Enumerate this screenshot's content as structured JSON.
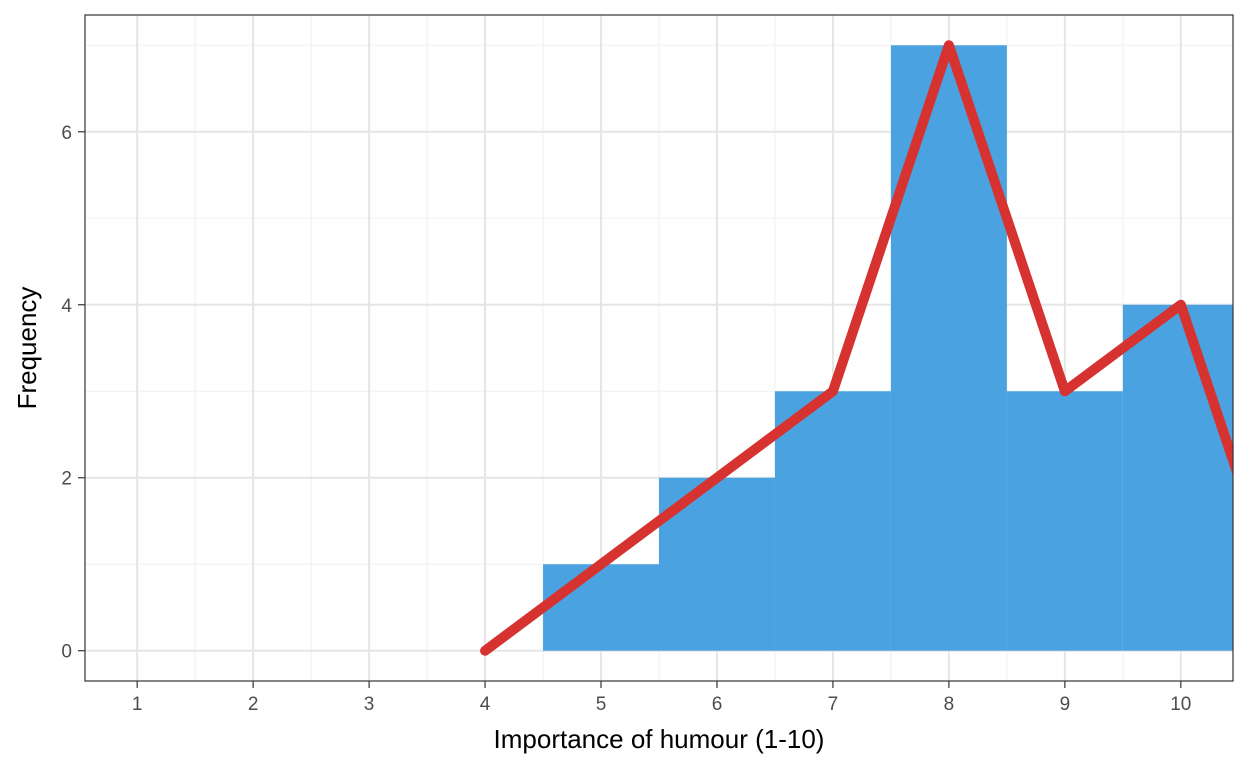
{
  "colors": {
    "bar": "#4aa3e0",
    "line": "#d63330",
    "grid_major": "#e5e5e5",
    "grid_minor": "#f0f0f0",
    "panel_border": "#333333",
    "tick_text": "#4d4d4d"
  },
  "chart_data": {
    "type": "bar",
    "xlabel": "Importance of humour (1-10)",
    "ylabel": "Frequency",
    "xlim": [
      0.55,
      10.45
    ],
    "ylim": [
      -0.35,
      7.35
    ],
    "grid": true,
    "x_ticks": [
      1,
      2,
      3,
      4,
      5,
      6,
      7,
      8,
      9,
      10
    ],
    "y_ticks": [
      0,
      2,
      4,
      6
    ],
    "bars": [
      {
        "x": 5,
        "value": 1
      },
      {
        "x": 6,
        "value": 2
      },
      {
        "x": 7,
        "value": 3
      },
      {
        "x": 8,
        "value": 7
      },
      {
        "x": 9,
        "value": 3
      },
      {
        "x": 10,
        "value": 4
      }
    ],
    "bar_width": 1,
    "series": [
      {
        "type": "line",
        "x": [
          4,
          5,
          6,
          7,
          8,
          9,
          10,
          11
        ],
        "values": [
          0,
          1,
          2,
          3,
          7,
          3,
          4,
          0
        ]
      }
    ]
  }
}
